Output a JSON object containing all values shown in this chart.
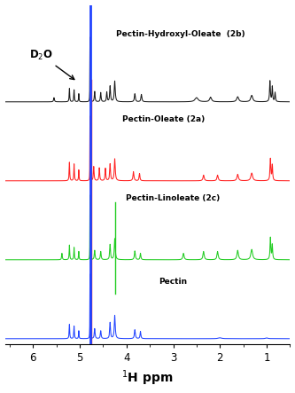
{
  "xlabel": "$^{1}$H ppm",
  "xlim": [
    6.6,
    0.5
  ],
  "colors": {
    "black": "#1a1a1a",
    "red": "#ff2222",
    "green": "#22cc22",
    "blue": "#2244ff"
  },
  "labels": {
    "2b": "Pectin-Hydroxyl-Oleate  (2b)",
    "2a": "Pectin-Oleate (2a)",
    "2c": "Pectin-Linoleate (2c)",
    "pectin": "Pectin"
  },
  "d2o_label": "D$_2$O",
  "offsets": [
    0.0,
    1.1,
    2.2,
    3.3
  ],
  "scale": 0.9
}
